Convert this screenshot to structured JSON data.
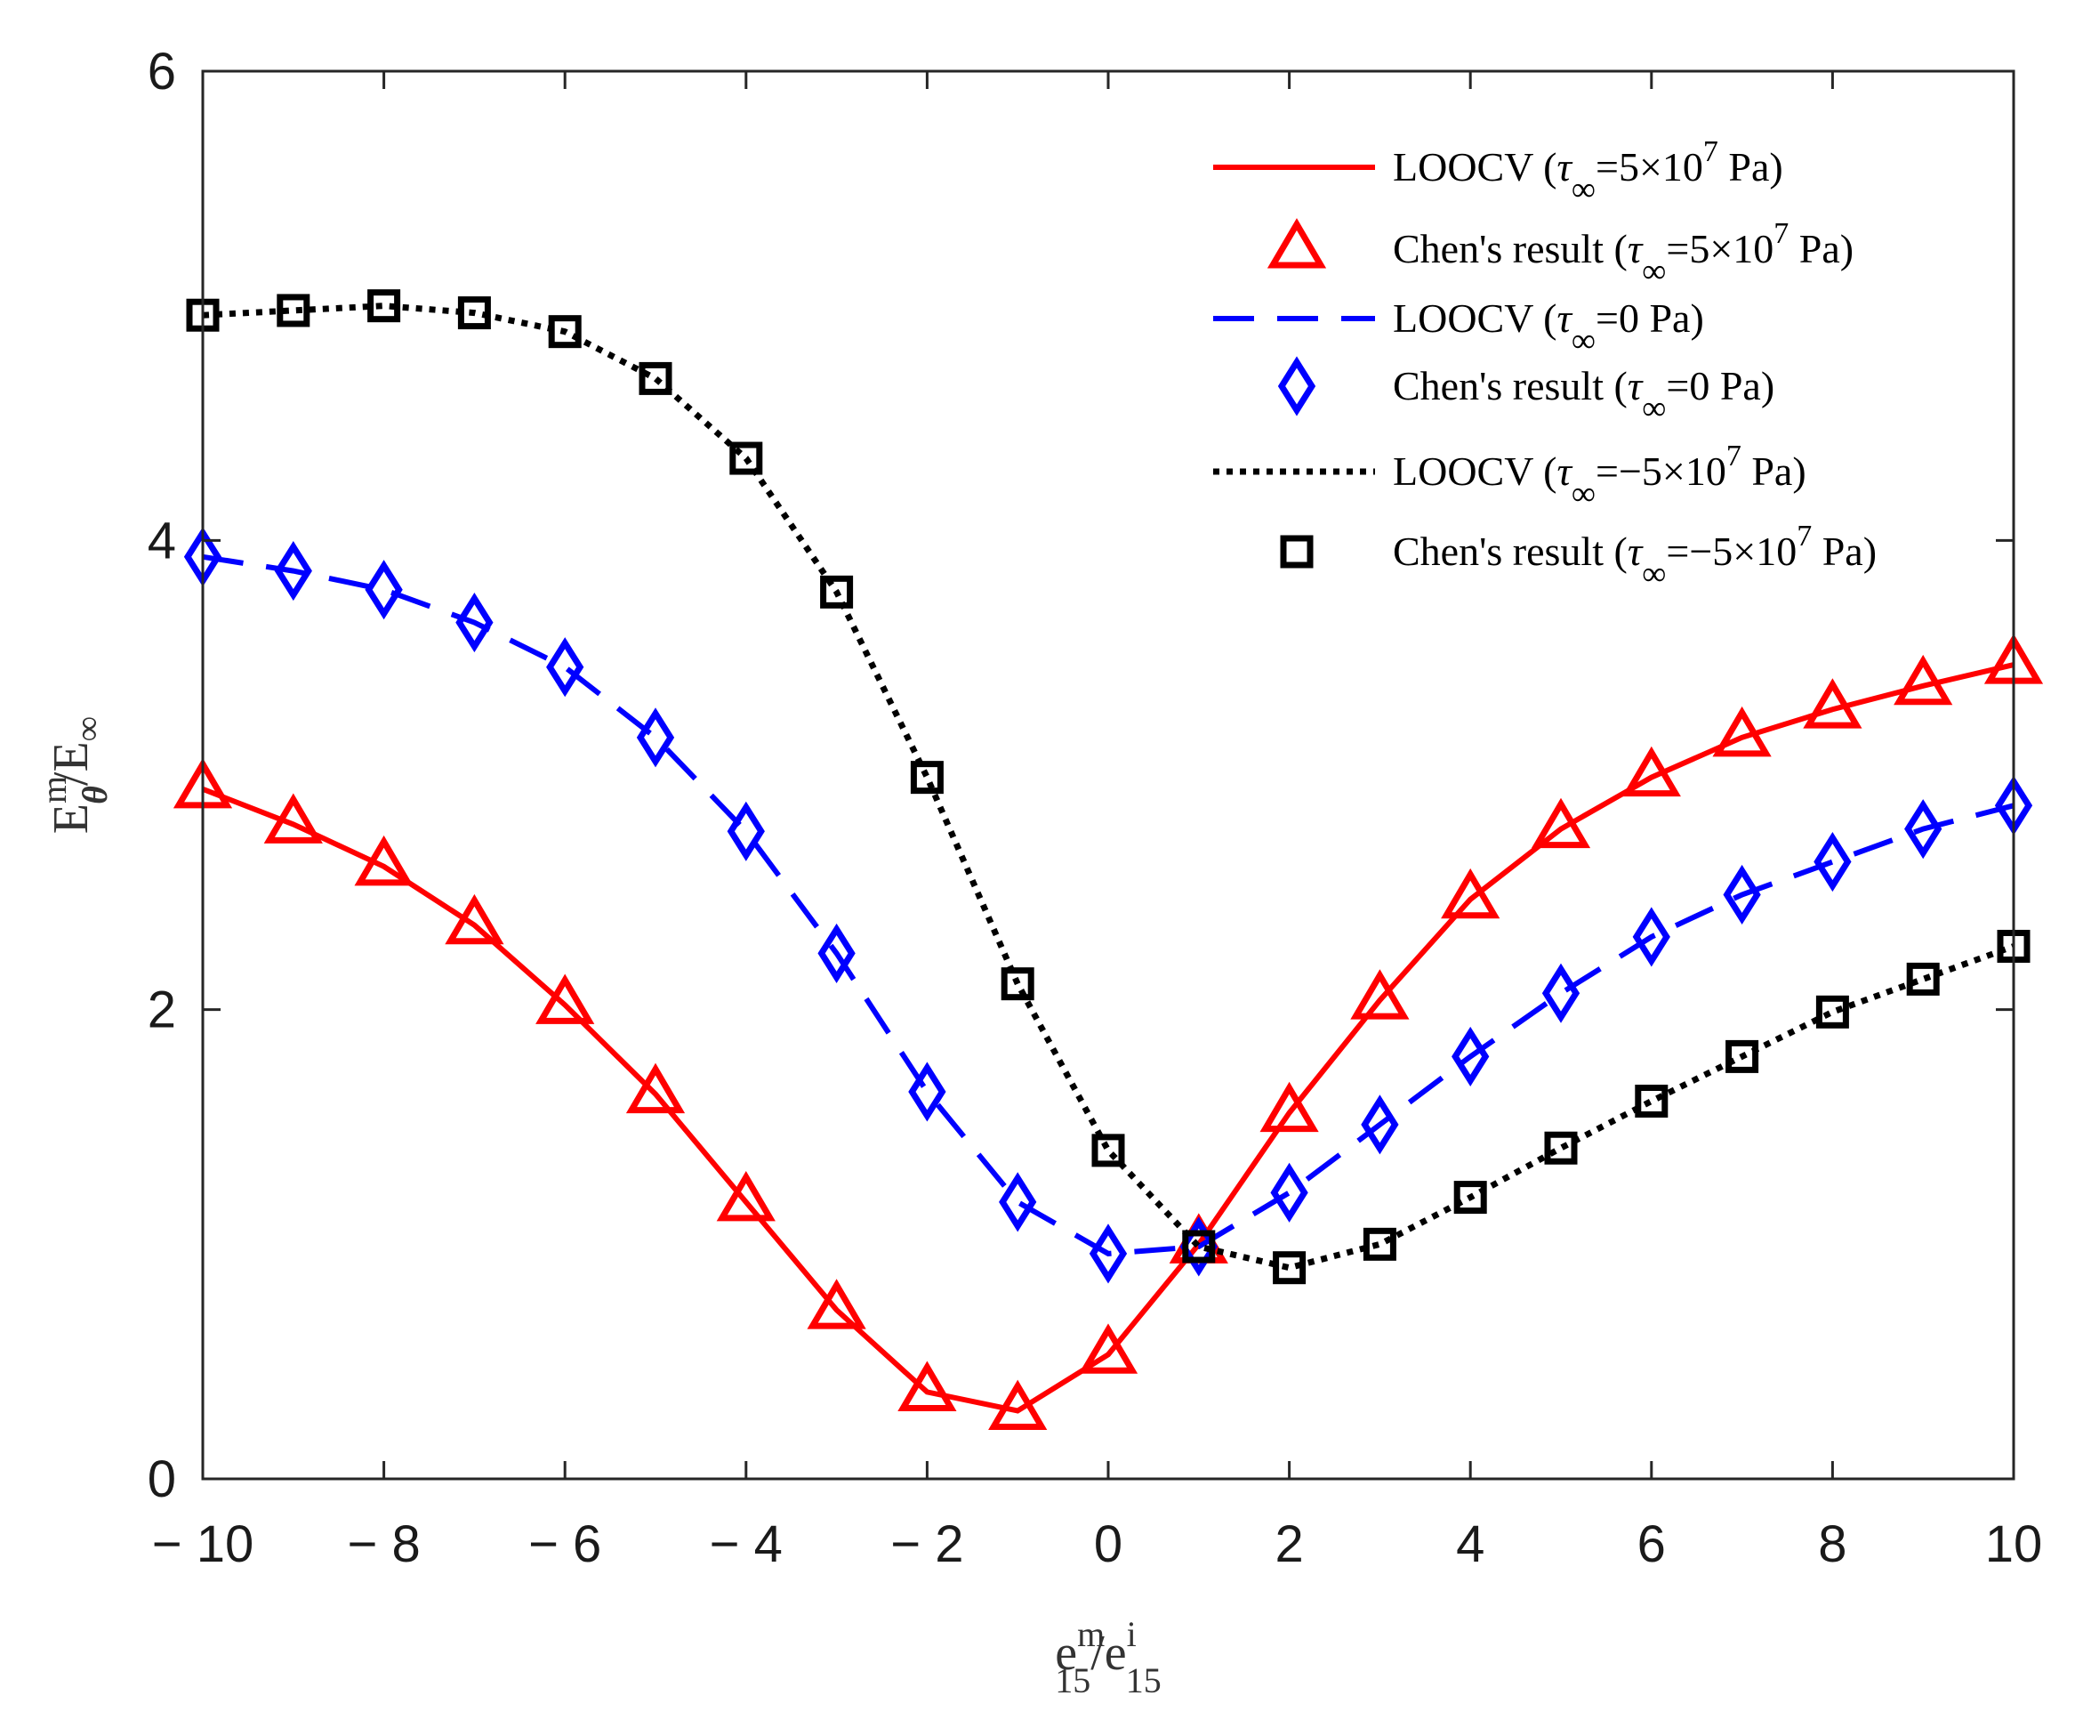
{
  "chart_data": {
    "type": "line",
    "title": "",
    "xlabel": {
      "base": "e",
      "sup": "m",
      "sub": "15",
      "slash": "/",
      "base2": "e",
      "sup2": "i",
      "sub2": "15"
    },
    "ylabel": {
      "base": "E",
      "sup": "m",
      "sub": "θ",
      "slash": "/",
      "base2": "E",
      "sub2": "∞"
    },
    "xlim": [
      -10,
      10
    ],
    "ylim": [
      0,
      6
    ],
    "xticks": [
      -10,
      -8,
      -6,
      -4,
      -2,
      0,
      2,
      4,
      6,
      8,
      10
    ],
    "xtick_labels": [
      "− 10",
      "− 8",
      "− 6",
      "− 4",
      "− 2",
      "0",
      "2",
      "4",
      "6",
      "8",
      "10"
    ],
    "yticks": [
      0,
      2,
      4,
      6
    ],
    "ytick_labels": [
      "0",
      "2",
      "4",
      "6"
    ],
    "grid": false,
    "legend_position": "top-right",
    "x": [
      -10,
      -9,
      -8,
      -7,
      -6,
      -5,
      -4,
      -3,
      -2,
      -1,
      0,
      1,
      2,
      3,
      4,
      5,
      6,
      7,
      8,
      9,
      10
    ],
    "series": [
      {
        "name": "tau_pos",
        "color": "#ff0000",
        "line": "solid",
        "marker": "triangle",
        "values": [
          2.94,
          2.79,
          2.61,
          2.36,
          2.02,
          1.64,
          1.18,
          0.72,
          0.37,
          0.29,
          0.53,
          1.0,
          1.56,
          2.04,
          2.47,
          2.77,
          2.99,
          3.16,
          3.28,
          3.38,
          3.47
        ]
      },
      {
        "name": "tau_zero",
        "color": "#0000ff",
        "line": "dashed",
        "marker": "diamond",
        "values": [
          3.93,
          3.87,
          3.79,
          3.65,
          3.46,
          3.16,
          2.76,
          2.24,
          1.65,
          1.18,
          0.96,
          0.99,
          1.22,
          1.51,
          1.8,
          2.07,
          2.31,
          2.49,
          2.63,
          2.77,
          2.87
        ]
      },
      {
        "name": "tau_neg",
        "color": "#000000",
        "line": "dotted",
        "marker": "square",
        "values": [
          4.96,
          4.98,
          5.0,
          4.97,
          4.89,
          4.69,
          4.35,
          3.78,
          2.99,
          2.11,
          1.4,
          0.99,
          0.9,
          1.0,
          1.2,
          1.41,
          1.61,
          1.8,
          1.99,
          2.13,
          2.27
        ]
      }
    ],
    "legend": [
      {
        "label": "LOOCV",
        "tau": "τ",
        "sub": "∞",
        "value": "=5×10",
        "exp": "7",
        "unit": " Pa",
        "series": 0,
        "kind": "line"
      },
      {
        "label": "Chen's result",
        "tau": "τ",
        "sub": "∞",
        "value": "=5×10",
        "exp": "7",
        "unit": " Pa",
        "series": 0,
        "kind": "marker"
      },
      {
        "label": "LOOCV",
        "tau": "τ",
        "sub": "∞",
        "value": "=0 Pa",
        "exp": "",
        "unit": "",
        "series": 1,
        "kind": "line"
      },
      {
        "label": "Chen's result",
        "tau": "τ",
        "sub": "∞",
        "value": "=0 Pa",
        "exp": "",
        "unit": "",
        "series": 1,
        "kind": "marker"
      },
      {
        "label": "LOOCV",
        "tau": "τ",
        "sub": "∞",
        "value": "=−5×10",
        "exp": "7",
        "unit": " Pa",
        "series": 2,
        "kind": "line"
      },
      {
        "label": "Chen's result",
        "tau": "τ",
        "sub": "∞",
        "value": "=−5×10",
        "exp": "7",
        "unit": " Pa",
        "series": 2,
        "kind": "marker"
      }
    ]
  }
}
